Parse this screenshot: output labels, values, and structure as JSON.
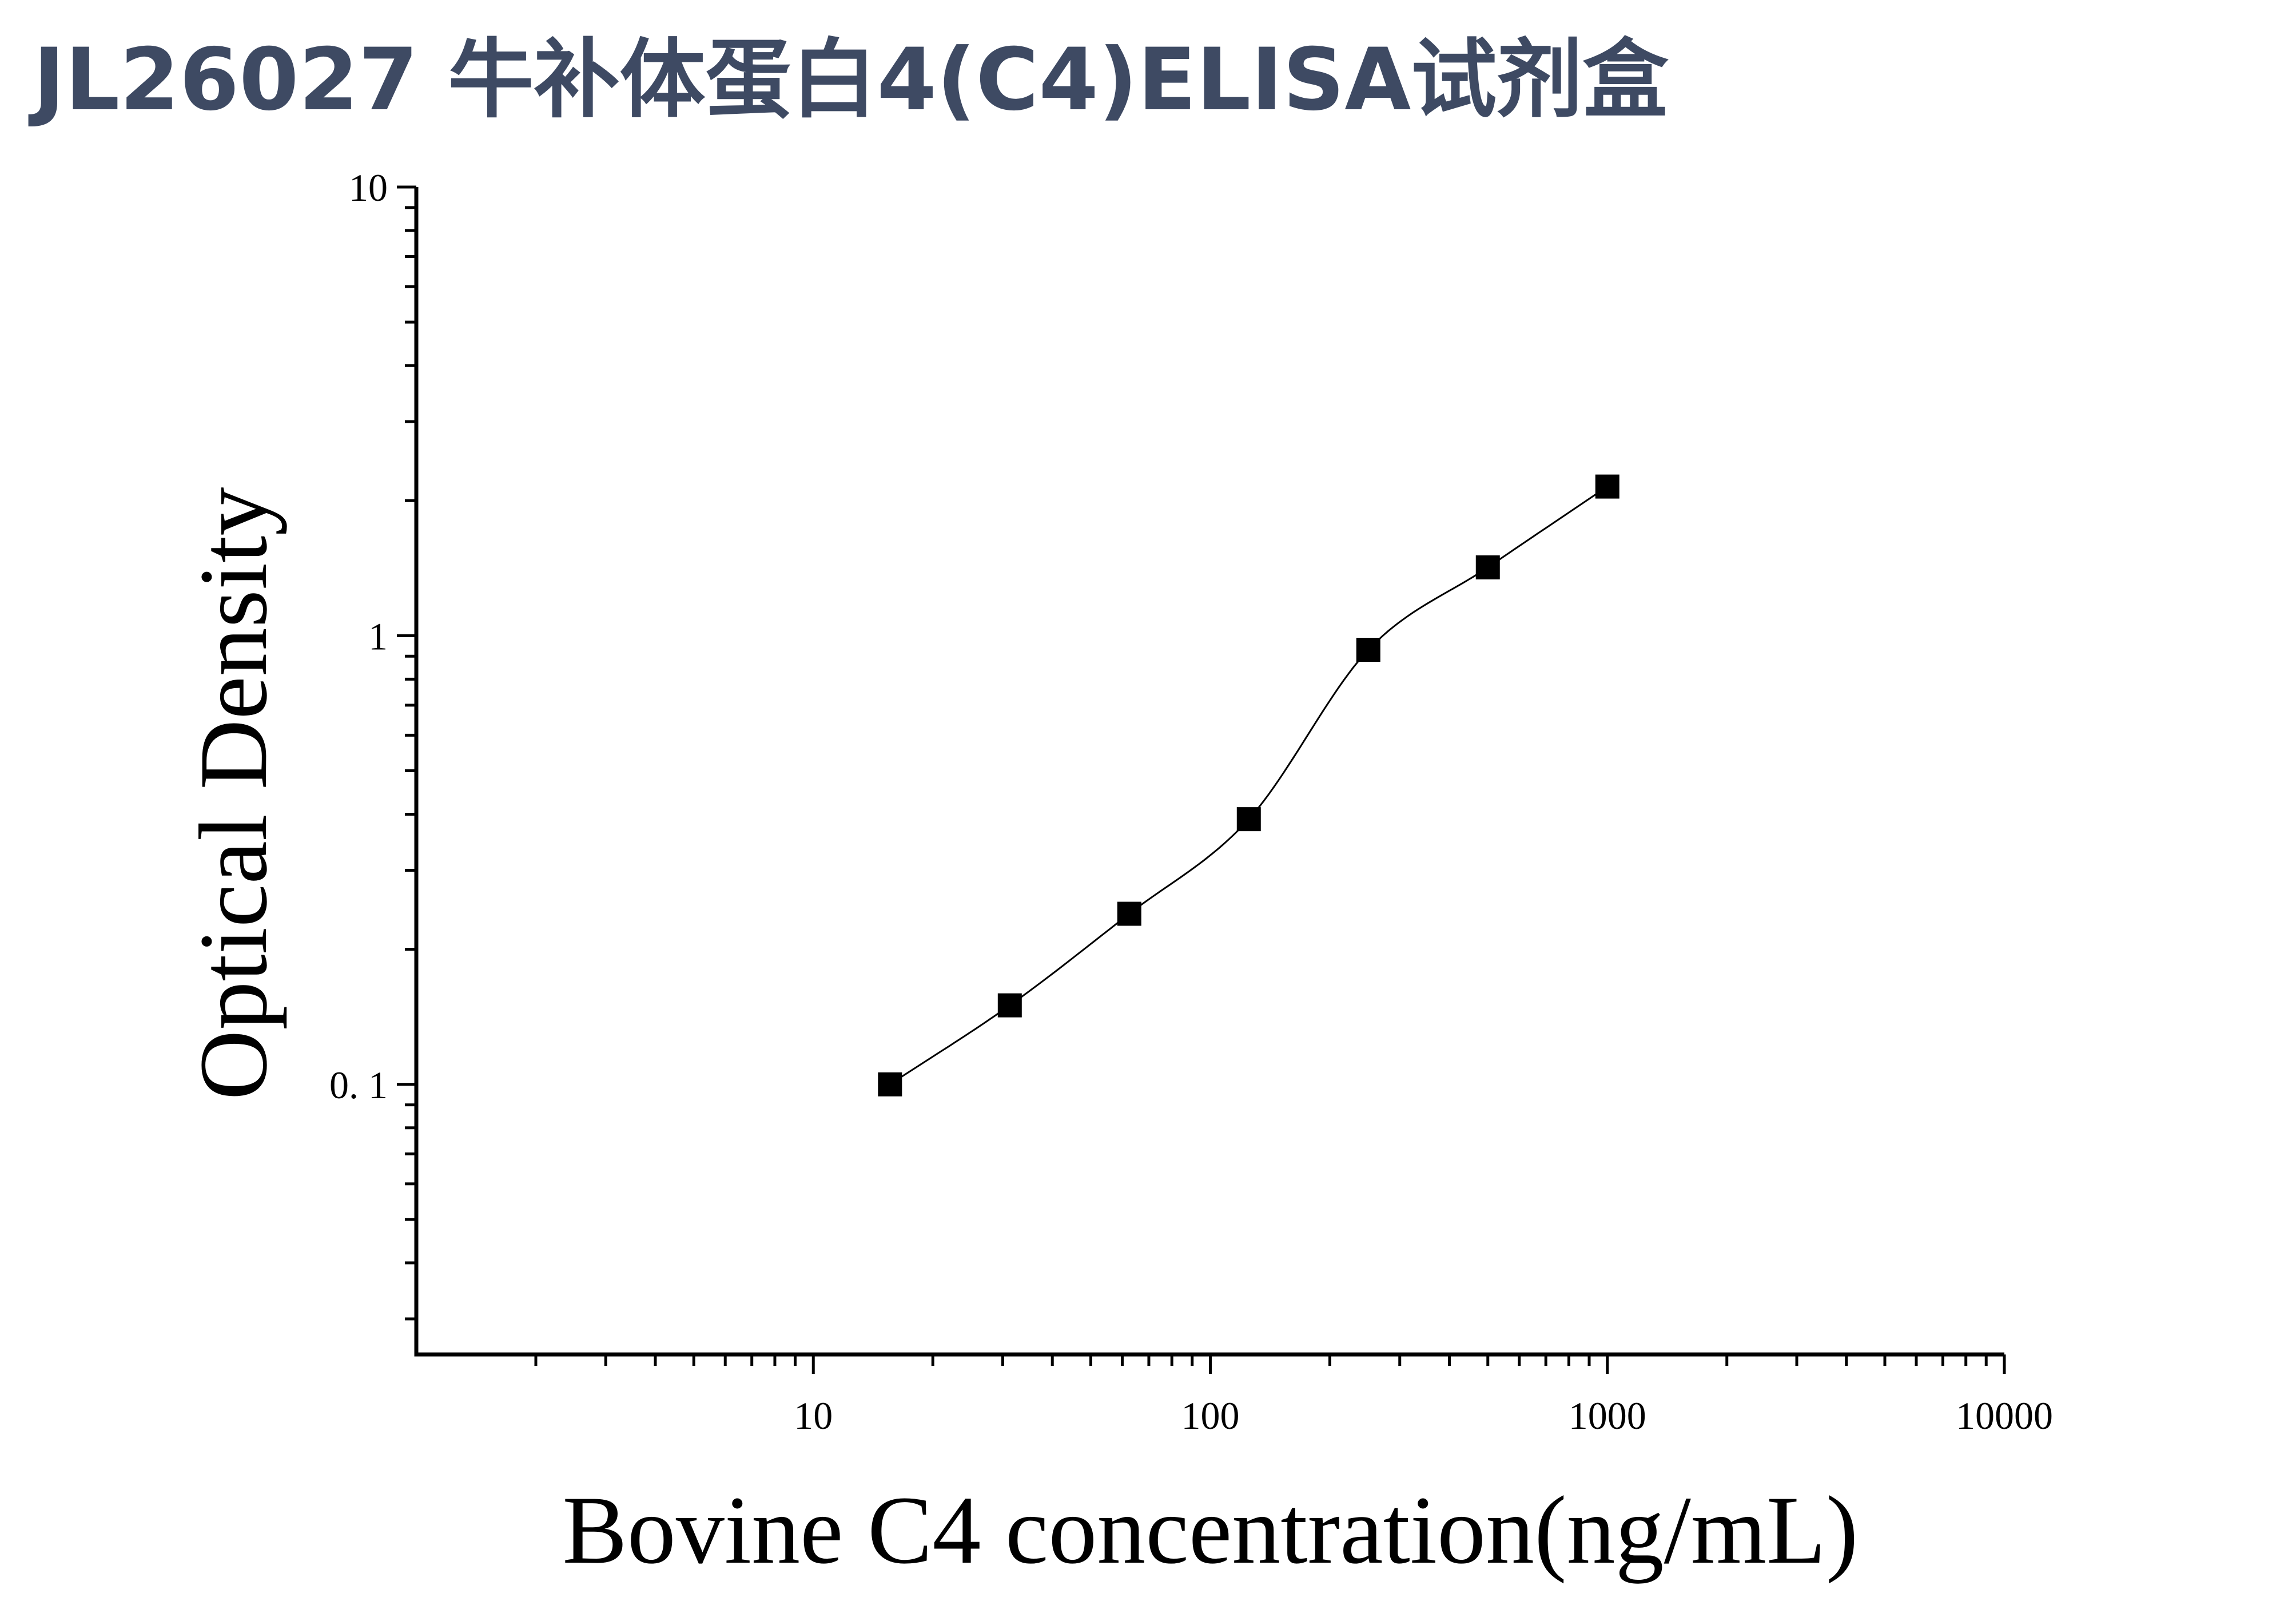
{
  "title": "JL26027 牛补体蛋白4(C4)ELISA试剂盒",
  "chart_data": {
    "type": "scatter",
    "title": "",
    "xlabel": "Bovine C4 concentration(ng/mL)",
    "ylabel": "Optical Density",
    "x_scale": "log",
    "y_scale": "log",
    "xlim": [
      1,
      10000
    ],
    "ylim": [
      0.025,
      10
    ],
    "x_ticks": [
      10,
      100,
      1000,
      10000
    ],
    "x_tick_labels": [
      "10",
      "100",
      "1000",
      "10000"
    ],
    "y_ticks": [
      0.1,
      1,
      10
    ],
    "y_tick_labels": [
      "0. 1",
      "1",
      "10"
    ],
    "grid": false,
    "legend": "none",
    "marker": "square",
    "color": "#000000",
    "series": [
      {
        "x": [
          15.6,
          31.25,
          62.5,
          125,
          250,
          500,
          1000
        ],
        "y": [
          0.1,
          0.15,
          0.24,
          0.39,
          0.93,
          1.42,
          2.15
        ]
      }
    ],
    "fit_curve": "four-parameter logistic"
  }
}
